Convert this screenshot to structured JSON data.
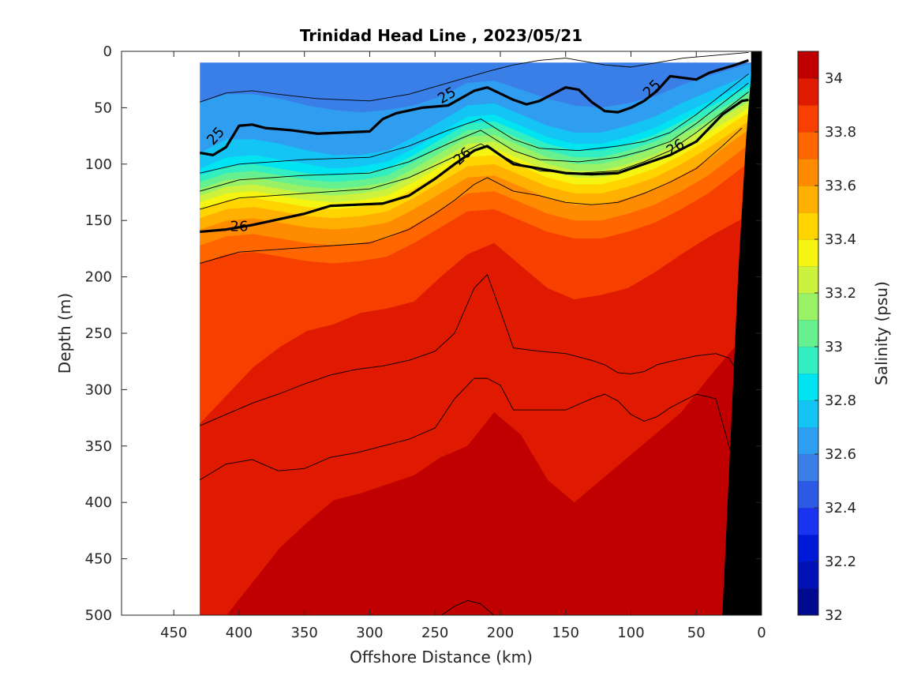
{
  "figure": {
    "title": "Trinidad Head Line , 2023/05/21"
  },
  "chart_data": {
    "type": "heatmap",
    "title": "Trinidad Head Line , 2023/05/21",
    "xlabel": "Offshore Distance (km)",
    "ylabel": "Depth (m)",
    "xlim": [
      490,
      0
    ],
    "ylim": [
      500,
      0
    ],
    "x_reversed": true,
    "y_reversed": true,
    "x_ticks": [
      450,
      400,
      350,
      300,
      250,
      200,
      150,
      100,
      50,
      0
    ],
    "y_ticks": [
      0,
      50,
      100,
      150,
      200,
      250,
      300,
      350,
      400,
      450,
      500
    ],
    "data_x_extent": [
      430,
      0
    ],
    "colorbar": {
      "label": "Salinity (psu)",
      "min": 32.0,
      "max": 34.1,
      "step": 0.1,
      "tick_labels": [
        "32",
        "32.2",
        "32.4",
        "32.6",
        "32.8",
        "33",
        "33.2",
        "33.4",
        "33.6",
        "33.8",
        "34"
      ],
      "colors": [
        "#000a8f",
        "#0012b5",
        "#0019d9",
        "#1a33f0",
        "#2c5ae6",
        "#3a7ee8",
        "#2f9ef0",
        "#14c4f5",
        "#00e3f0",
        "#33eec0",
        "#66f090",
        "#99f266",
        "#ccf23d",
        "#f5f511",
        "#ffd400",
        "#ffb000",
        "#ff8c00",
        "#ff6600",
        "#f74000",
        "#e01a00",
        "#c00000"
      ]
    },
    "salinity_layers": [
      {
        "value": 32.5,
        "depths": [
          10,
          10,
          10,
          10,
          10,
          10,
          10,
          10,
          10,
          10,
          10,
          10,
          10,
          10,
          10,
          10,
          10,
          10,
          10,
          10,
          10,
          10
        ]
      },
      {
        "value": 32.6,
        "depths": [
          45,
          38,
          38,
          42,
          48,
          52,
          54,
          52,
          48,
          40,
          28,
          26,
          34,
          42,
          48,
          50,
          46,
          40,
          30,
          22,
          15,
          8
        ]
      },
      {
        "value": 32.7,
        "depths": [
          90,
          78,
          78,
          82,
          88,
          92,
          92,
          88,
          76,
          62,
          48,
          46,
          56,
          66,
          72,
          72,
          66,
          58,
          46,
          36,
          26,
          16
        ]
      },
      {
        "value": 32.8,
        "depths": [
          104,
          94,
          92,
          96,
          100,
          104,
          102,
          98,
          86,
          72,
          58,
          56,
          66,
          76,
          82,
          82,
          76,
          68,
          56,
          45,
          34,
          22
        ]
      },
      {
        "value": 32.9,
        "depths": [
          110,
          102,
          100,
          104,
          108,
          110,
          108,
          104,
          92,
          78,
          64,
          62,
          72,
          82,
          88,
          88,
          82,
          74,
          62,
          50,
          38,
          26
        ]
      },
      {
        "value": 33.0,
        "depths": [
          116,
          108,
          106,
          110,
          114,
          116,
          114,
          110,
          98,
          84,
          70,
          68,
          78,
          88,
          94,
          94,
          88,
          80,
          68,
          56,
          44,
          30
        ]
      },
      {
        "value": 33.1,
        "depths": [
          122,
          114,
          112,
          116,
          120,
          122,
          120,
          116,
          104,
          90,
          76,
          74,
          84,
          94,
          100,
          100,
          94,
          86,
          74,
          62,
          48,
          34
        ]
      },
      {
        "value": 33.2,
        "depths": [
          128,
          120,
          118,
          122,
          126,
          128,
          126,
          122,
          110,
          96,
          82,
          80,
          90,
          100,
          106,
          106,
          100,
          92,
          80,
          66,
          52,
          38
        ]
      },
      {
        "value": 33.3,
        "depths": [
          134,
          126,
          124,
          128,
          132,
          134,
          132,
          128,
          116,
          102,
          88,
          86,
          96,
          106,
          112,
          112,
          106,
          98,
          86,
          72,
          58,
          42
        ]
      },
      {
        "value": 33.4,
        "depths": [
          140,
          132,
          130,
          134,
          138,
          140,
          138,
          134,
          122,
          108,
          94,
          92,
          102,
          112,
          118,
          118,
          112,
          104,
          92,
          78,
          62,
          48
        ]
      },
      {
        "value": 33.5,
        "depths": [
          148,
          140,
          138,
          142,
          146,
          148,
          146,
          142,
          130,
          116,
          102,
          100,
          110,
          120,
          126,
          126,
          120,
          112,
          100,
          86,
          70,
          54
        ]
      },
      {
        "value": 33.6,
        "depths": [
          158,
          150,
          148,
          152,
          156,
          158,
          156,
          152,
          140,
          126,
          112,
          110,
          120,
          130,
          136,
          136,
          130,
          122,
          110,
          96,
          78,
          62
        ]
      },
      {
        "value": 33.7,
        "depths": [
          172,
          164,
          162,
          166,
          170,
          172,
          170,
          166,
          154,
          140,
          126,
          124,
          134,
          144,
          150,
          150,
          144,
          136,
          124,
          110,
          92,
          74
        ]
      },
      {
        "value": 33.8,
        "depths": [
          188,
          180,
          178,
          182,
          186,
          188,
          186,
          182,
          170,
          156,
          142,
          140,
          150,
          160,
          166,
          166,
          160,
          152,
          140,
          126,
          108,
          90
        ]
      },
      {
        "value": 33.9,
        "depths": [
          330,
          305,
          280,
          262,
          248,
          242,
          232,
          228,
          222,
          200,
          180,
          170,
          190,
          210,
          220,
          216,
          210,
          196,
          180,
          165,
          152,
          140
        ]
      },
      {
        "value": 34.0,
        "depths": [
          500,
          500,
          470,
          440,
          418,
          398,
          392,
          384,
          376,
          360,
          350,
          320,
          340,
          380,
          400,
          380,
          360,
          340,
          320,
          290,
          262,
          240
        ]
      },
      {
        "value": 34.1,
        "depths": [
          500,
          500,
          500,
          500,
          500,
          500,
          500,
          500,
          500,
          480,
          440,
          390,
          420,
          480,
          500,
          500,
          500,
          470,
          440,
          420,
          400,
          380
        ]
      }
    ],
    "density_contours": [
      {
        "level": "",
        "bold": false,
        "x": [
          430,
          410,
          390,
          370,
          340,
          300,
          270,
          240,
          210,
          190,
          170,
          150,
          120,
          100,
          80,
          60,
          40,
          20,
          10
        ],
        "depth": [
          45,
          37,
          35,
          38,
          42,
          44,
          38,
          28,
          18,
          12,
          8,
          6,
          12,
          14,
          10,
          6,
          4,
          2,
          1
        ]
      },
      {
        "level": "25",
        "bold": true,
        "x": [
          430,
          420,
          410,
          400,
          390,
          380,
          360,
          340,
          300,
          290,
          280,
          260,
          240,
          220,
          210,
          190,
          180,
          170,
          150,
          140,
          130,
          120,
          110,
          100,
          90,
          80,
          70,
          50,
          40,
          20,
          10
        ],
        "depth": [
          90,
          92,
          85,
          66,
          65,
          68,
          70,
          73,
          71,
          60,
          55,
          50,
          48,
          35,
          32,
          43,
          47,
          44,
          32,
          34,
          45,
          53,
          54,
          50,
          44,
          35,
          22,
          25,
          19,
          12,
          8
        ]
      },
      {
        "level": "",
        "bold": false,
        "x": [
          430,
          400,
          350,
          300,
          270,
          240,
          215,
          190,
          170,
          140,
          110,
          90,
          70,
          50,
          30,
          10
        ],
        "depth": [
          108,
          100,
          96,
          94,
          84,
          70,
          60,
          78,
          86,
          88,
          84,
          80,
          72,
          56,
          38,
          20
        ]
      },
      {
        "level": "",
        "bold": false,
        "x": [
          430,
          400,
          350,
          300,
          270,
          240,
          215,
          190,
          170,
          140,
          110,
          90,
          70,
          50,
          30,
          10
        ],
        "depth": [
          124,
          114,
          110,
          108,
          98,
          82,
          70,
          88,
          96,
          98,
          94,
          88,
          80,
          64,
          46,
          28
        ]
      },
      {
        "level": "",
        "bold": false,
        "x": [
          430,
          400,
          350,
          300,
          270,
          240,
          215,
          190,
          170,
          140,
          110,
          90,
          70,
          50,
          30,
          10
        ],
        "depth": [
          140,
          130,
          126,
          122,
          112,
          96,
          82,
          98,
          106,
          108,
          106,
          98,
          88,
          72,
          54,
          36
        ]
      },
      {
        "level": "26",
        "bold": true,
        "x": [
          430,
          410,
          390,
          370,
          350,
          330,
          310,
          290,
          270,
          250,
          235,
          220,
          210,
          190,
          170,
          150,
          130,
          110,
          90,
          70,
          50,
          30,
          15,
          10
        ],
        "depth": [
          160,
          158,
          154,
          149,
          144,
          137,
          136,
          135,
          128,
          113,
          100,
          88,
          84,
          100,
          104,
          108,
          109,
          108,
          100,
          92,
          80,
          56,
          44,
          43
        ]
      },
      {
        "level": "",
        "bold": false,
        "x": [
          430,
          400,
          350,
          300,
          270,
          250,
          235,
          220,
          210,
          190,
          170,
          150,
          130,
          110,
          90,
          70,
          50,
          30,
          15
        ],
        "depth": [
          188,
          178,
          174,
          170,
          158,
          144,
          132,
          118,
          112,
          124,
          128,
          134,
          136,
          134,
          126,
          116,
          104,
          84,
          68
        ]
      },
      {
        "level": "",
        "bold": false,
        "x": [
          430,
          410,
          390,
          370,
          350,
          330,
          310,
          290,
          270,
          250,
          235,
          220,
          210,
          200,
          190,
          170,
          150,
          130,
          120,
          110,
          100,
          90,
          80,
          70,
          50,
          35,
          25,
          15
        ],
        "depth": [
          332,
          322,
          312,
          304,
          295,
          287,
          282,
          279,
          274,
          266,
          250,
          210,
          198,
          230,
          263,
          266,
          268,
          274,
          278,
          285,
          286,
          284,
          278,
          275,
          270,
          268,
          272,
          290
        ]
      },
      {
        "level": "",
        "bold": false,
        "x": [
          430,
          410,
          390,
          370,
          350,
          330,
          310,
          290,
          270,
          250,
          235,
          220,
          210,
          200,
          190,
          170,
          150,
          130,
          120,
          110,
          100,
          90,
          80,
          70,
          50,
          35,
          25,
          15
        ],
        "depth": [
          380,
          366,
          362,
          372,
          370,
          360,
          356,
          350,
          344,
          334,
          308,
          290,
          290,
          296,
          318,
          318,
          318,
          308,
          304,
          310,
          322,
          328,
          324,
          316,
          304,
          308,
          350,
          390
        ]
      },
      {
        "level": "",
        "bold": false,
        "x": [
          245,
          235,
          225,
          215,
          205
        ],
        "depth": [
          500,
          492,
          487,
          490,
          500
        ]
      }
    ],
    "bathymetry_polygon": {
      "x": [
        8,
        8,
        12,
        18,
        24,
        30,
        0,
        0
      ],
      "depth": [
        0,
        20,
        80,
        200,
        350,
        500,
        500,
        0
      ]
    }
  }
}
